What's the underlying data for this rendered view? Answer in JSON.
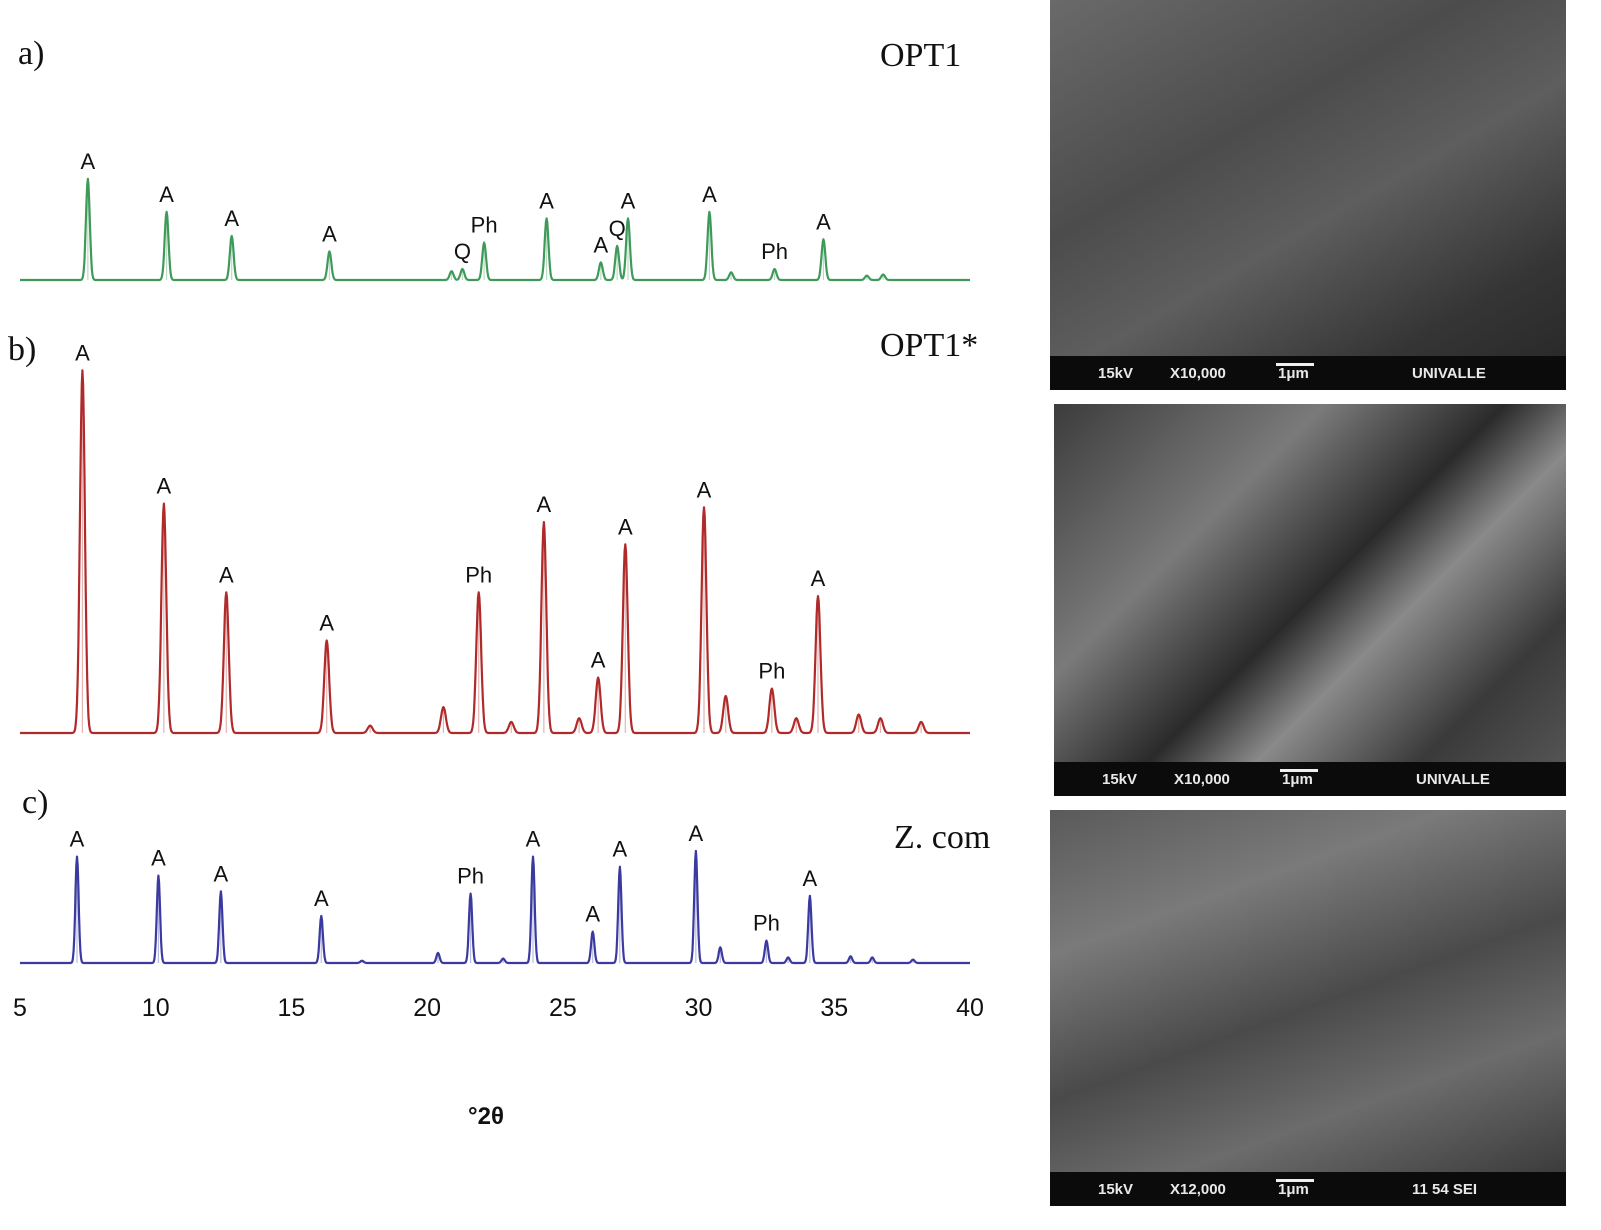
{
  "chart_data": [
    {
      "type": "line",
      "panel_label": "a)",
      "sample": "OPT1",
      "color": "#3f9a5a",
      "x_range": [
        5,
        40
      ],
      "peaks": [
        {
          "x": 7.5,
          "h": 0.92,
          "label": "A"
        },
        {
          "x": 10.4,
          "h": 0.62,
          "label": "A"
        },
        {
          "x": 12.8,
          "h": 0.4,
          "label": "A"
        },
        {
          "x": 16.4,
          "h": 0.26,
          "label": "A"
        },
        {
          "x": 20.9,
          "h": 0.08,
          "label": ""
        },
        {
          "x": 21.3,
          "h": 0.1,
          "label": "Q"
        },
        {
          "x": 22.1,
          "h": 0.34,
          "label": "Ph"
        },
        {
          "x": 24.4,
          "h": 0.56,
          "label": "A"
        },
        {
          "x": 26.4,
          "h": 0.16,
          "label": "A"
        },
        {
          "x": 27.0,
          "h": 0.31,
          "label": "Q"
        },
        {
          "x": 27.4,
          "h": 0.56,
          "label": "A"
        },
        {
          "x": 30.4,
          "h": 0.62,
          "label": "A"
        },
        {
          "x": 31.2,
          "h": 0.07,
          "label": ""
        },
        {
          "x": 32.8,
          "h": 0.1,
          "label": "Ph"
        },
        {
          "x": 34.6,
          "h": 0.37,
          "label": "A"
        },
        {
          "x": 36.2,
          "h": 0.04,
          "label": ""
        },
        {
          "x": 36.8,
          "h": 0.05,
          "label": ""
        }
      ]
    },
    {
      "type": "line",
      "panel_label": "b)",
      "sample": "OPT1*",
      "color": "#b02a2a",
      "x_range": [
        5,
        40
      ],
      "peaks": [
        {
          "x": 7.3,
          "h": 0.98,
          "label": "A"
        },
        {
          "x": 10.3,
          "h": 0.62,
          "label": "A"
        },
        {
          "x": 12.6,
          "h": 0.38,
          "label": "A"
        },
        {
          "x": 16.3,
          "h": 0.25,
          "label": "A"
        },
        {
          "x": 17.9,
          "h": 0.02,
          "label": ""
        },
        {
          "x": 20.6,
          "h": 0.07,
          "label": ""
        },
        {
          "x": 21.9,
          "h": 0.38,
          "label": "Ph"
        },
        {
          "x": 23.1,
          "h": 0.03,
          "label": ""
        },
        {
          "x": 24.3,
          "h": 0.57,
          "label": "A"
        },
        {
          "x": 25.6,
          "h": 0.04,
          "label": ""
        },
        {
          "x": 26.3,
          "h": 0.15,
          "label": "A"
        },
        {
          "x": 27.3,
          "h": 0.51,
          "label": "A"
        },
        {
          "x": 30.2,
          "h": 0.61,
          "label": "A"
        },
        {
          "x": 31.0,
          "h": 0.1,
          "label": ""
        },
        {
          "x": 32.7,
          "h": 0.12,
          "label": "Ph"
        },
        {
          "x": 33.6,
          "h": 0.04,
          "label": ""
        },
        {
          "x": 34.4,
          "h": 0.37,
          "label": "A"
        },
        {
          "x": 35.9,
          "h": 0.05,
          "label": ""
        },
        {
          "x": 36.7,
          "h": 0.04,
          "label": ""
        },
        {
          "x": 38.2,
          "h": 0.03,
          "label": ""
        }
      ]
    },
    {
      "type": "line",
      "panel_label": "c)",
      "sample": "Z. com",
      "color": "#3a3aa0",
      "x_range": [
        5,
        40
      ],
      "x_ticks": [
        5,
        10,
        15,
        20,
        25,
        30,
        35,
        40
      ],
      "x_label": "°2θ",
      "peaks": [
        {
          "x": 7.1,
          "h": 0.95,
          "label": "A"
        },
        {
          "x": 10.1,
          "h": 0.78,
          "label": "A"
        },
        {
          "x": 12.4,
          "h": 0.64,
          "label": "A"
        },
        {
          "x": 16.1,
          "h": 0.42,
          "label": "A"
        },
        {
          "x": 17.6,
          "h": 0.02,
          "label": ""
        },
        {
          "x": 20.4,
          "h": 0.09,
          "label": ""
        },
        {
          "x": 21.6,
          "h": 0.62,
          "label": "Ph"
        },
        {
          "x": 22.8,
          "h": 0.04,
          "label": ""
        },
        {
          "x": 23.9,
          "h": 0.95,
          "label": "A"
        },
        {
          "x": 26.1,
          "h": 0.28,
          "label": "A"
        },
        {
          "x": 27.1,
          "h": 0.86,
          "label": "A"
        },
        {
          "x": 29.9,
          "h": 1.0,
          "label": "A"
        },
        {
          "x": 30.8,
          "h": 0.14,
          "label": ""
        },
        {
          "x": 32.5,
          "h": 0.2,
          "label": "Ph"
        },
        {
          "x": 33.3,
          "h": 0.05,
          "label": ""
        },
        {
          "x": 34.1,
          "h": 0.6,
          "label": "A"
        },
        {
          "x": 35.6,
          "h": 0.06,
          "label": ""
        },
        {
          "x": 36.4,
          "h": 0.05,
          "label": ""
        },
        {
          "x": 37.9,
          "h": 0.03,
          "label": ""
        }
      ]
    }
  ],
  "sem_images": [
    {
      "kv": "15kV",
      "mag": "X10,000",
      "scale": "1μm",
      "tag": "UNIVALLE"
    },
    {
      "kv": "15kV",
      "mag": "X10,000",
      "scale": "1μm",
      "tag": "UNIVALLE"
    },
    {
      "kv": "15kV",
      "mag": "X12,000",
      "scale": "1μm",
      "tag": "11 54 SEI"
    }
  ]
}
